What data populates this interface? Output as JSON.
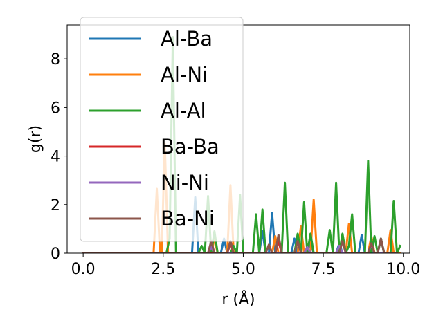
{
  "chart_data": {
    "type": "line",
    "xlabel": "r (Å)",
    "ylabel": "g(r)",
    "xlim": [
      -0.5,
      10.2
    ],
    "ylim": [
      0,
      9.4
    ],
    "xticks": [
      "0.0",
      "2.5",
      "5.0",
      "7.5",
      "10.0"
    ],
    "yticks": [
      "0",
      "2",
      "4",
      "6",
      "8"
    ],
    "grid": false,
    "legend_position": "top-left",
    "series": [
      {
        "name": "Al-Ba",
        "color": "#1f77b4",
        "points": [
          [
            0,
            0
          ],
          [
            3.4,
            0
          ],
          [
            3.5,
            2.3
          ],
          [
            3.6,
            0
          ],
          [
            4.3,
            0
          ],
          [
            4.4,
            0.6
          ],
          [
            4.5,
            0
          ],
          [
            5.5,
            0
          ],
          [
            5.6,
            0.9
          ],
          [
            5.7,
            0
          ],
          [
            5.8,
            0
          ],
          [
            5.9,
            1.65
          ],
          [
            6.0,
            0
          ],
          [
            6.5,
            0
          ],
          [
            6.6,
            0.6
          ],
          [
            6.7,
            0
          ],
          [
            7.0,
            0
          ],
          [
            7.1,
            0.5
          ],
          [
            7.2,
            0
          ],
          [
            7.9,
            0
          ],
          [
            8.0,
            0.4
          ],
          [
            8.1,
            0
          ],
          [
            8.6,
            0
          ],
          [
            8.7,
            0.75
          ],
          [
            8.8,
            0
          ],
          [
            9.2,
            0
          ],
          [
            9.3,
            0.6
          ],
          [
            9.4,
            0
          ],
          [
            9.8,
            0
          ]
        ]
      },
      {
        "name": "Al-Ni",
        "color": "#ff7f0e",
        "points": [
          [
            0,
            0
          ],
          [
            2.2,
            0
          ],
          [
            2.3,
            2.65
          ],
          [
            2.4,
            0
          ],
          [
            2.45,
            0
          ],
          [
            2.55,
            4.5
          ],
          [
            2.65,
            0
          ],
          [
            4.0,
            0
          ],
          [
            4.1,
            0.6
          ],
          [
            4.2,
            0
          ],
          [
            4.5,
            0
          ],
          [
            4.6,
            2.8
          ],
          [
            4.7,
            0
          ],
          [
            5.9,
            0
          ],
          [
            6.0,
            0.7
          ],
          [
            6.1,
            0
          ],
          [
            6.7,
            0
          ],
          [
            6.8,
            1.1
          ],
          [
            6.9,
            0
          ],
          [
            7.1,
            0
          ],
          [
            7.2,
            2.2
          ],
          [
            7.3,
            0
          ],
          [
            8.2,
            0
          ],
          [
            8.3,
            1.2
          ],
          [
            8.4,
            0
          ],
          [
            8.9,
            0
          ],
          [
            9.0,
            0.7
          ],
          [
            9.1,
            0
          ],
          [
            9.5,
            0
          ],
          [
            9.6,
            0.95
          ],
          [
            9.7,
            0
          ],
          [
            9.9,
            0
          ]
        ]
      },
      {
        "name": "Al-Al",
        "color": "#2ca02c",
        "points": [
          [
            0,
            0
          ],
          [
            2.6,
            0
          ],
          [
            2.7,
            0.6
          ],
          [
            2.8,
            8.9
          ],
          [
            2.9,
            0
          ],
          [
            3.6,
            0
          ],
          [
            3.7,
            0.3
          ],
          [
            3.8,
            0
          ],
          [
            3.9,
            2.35
          ],
          [
            4.0,
            0
          ],
          [
            4.1,
            0.9
          ],
          [
            4.2,
            0
          ],
          [
            4.6,
            0
          ],
          [
            4.7,
            0.3
          ],
          [
            4.8,
            0
          ],
          [
            4.9,
            2.4
          ],
          [
            5.0,
            0
          ],
          [
            5.3,
            0
          ],
          [
            5.4,
            1.6
          ],
          [
            5.5,
            0
          ],
          [
            5.6,
            1.8
          ],
          [
            5.7,
            0
          ],
          [
            6.0,
            0
          ],
          [
            6.1,
            0.7
          ],
          [
            6.2,
            0
          ],
          [
            6.3,
            2.9
          ],
          [
            6.4,
            0
          ],
          [
            6.6,
            0
          ],
          [
            6.7,
            0.8
          ],
          [
            6.8,
            0
          ],
          [
            6.9,
            2.1
          ],
          [
            7.0,
            0
          ],
          [
            7.1,
            0.8
          ],
          [
            7.2,
            0
          ],
          [
            7.6,
            0
          ],
          [
            7.7,
            0.95
          ],
          [
            7.8,
            0
          ],
          [
            7.9,
            2.9
          ],
          [
            8.0,
            0
          ],
          [
            8.1,
            0.8
          ],
          [
            8.2,
            0
          ],
          [
            8.3,
            0.3
          ],
          [
            8.4,
            1.6
          ],
          [
            8.5,
            0
          ],
          [
            8.8,
            0
          ],
          [
            8.9,
            3.8
          ],
          [
            9.0,
            0
          ],
          [
            9.1,
            0.7
          ],
          [
            9.2,
            0
          ],
          [
            9.3,
            0.6
          ],
          [
            9.4,
            0
          ],
          [
            9.6,
            0
          ],
          [
            9.7,
            2.15
          ],
          [
            9.8,
            0
          ],
          [
            9.9,
            0.3
          ]
        ]
      },
      {
        "name": "Ba-Ba",
        "color": "#d62728",
        "points": [
          [
            0,
            0
          ],
          [
            4.5,
            0
          ],
          [
            4.6,
            0.4
          ],
          [
            4.7,
            0
          ],
          [
            6.0,
            0
          ],
          [
            6.1,
            0.5
          ],
          [
            6.2,
            0
          ],
          [
            8.9,
            0
          ],
          [
            9.0,
            0.4
          ],
          [
            9.1,
            0
          ],
          [
            9.8,
            0
          ]
        ]
      },
      {
        "name": "Ni-Ni",
        "color": "#9467bd",
        "points": [
          [
            0,
            0
          ],
          [
            3.9,
            0
          ],
          [
            4.0,
            0.25
          ],
          [
            4.1,
            0
          ],
          [
            6.9,
            0
          ],
          [
            7.0,
            0.25
          ],
          [
            7.1,
            0
          ],
          [
            7.9,
            0
          ],
          [
            8.0,
            0.3
          ],
          [
            8.1,
            0
          ],
          [
            8.9,
            0
          ],
          [
            9.0,
            0.35
          ],
          [
            9.1,
            0
          ],
          [
            9.8,
            0
          ]
        ]
      },
      {
        "name": "Ba-Ni",
        "color": "#8c564b",
        "points": [
          [
            0,
            0
          ],
          [
            3.9,
            0
          ],
          [
            4.0,
            0.5
          ],
          [
            4.1,
            0
          ],
          [
            4.5,
            0
          ],
          [
            4.6,
            0.5
          ],
          [
            4.7,
            0
          ],
          [
            5.7,
            0
          ],
          [
            5.8,
            0.35
          ],
          [
            5.9,
            0
          ],
          [
            6.0,
            0
          ],
          [
            6.1,
            0.75
          ],
          [
            6.2,
            0
          ],
          [
            6.6,
            0
          ],
          [
            6.7,
            0.5
          ],
          [
            6.8,
            0
          ],
          [
            8.0,
            0
          ],
          [
            8.1,
            0.5
          ],
          [
            8.2,
            0
          ],
          [
            8.9,
            0
          ],
          [
            9.0,
            0.4
          ],
          [
            9.1,
            0
          ],
          [
            9.2,
            0
          ],
          [
            9.3,
            0.6
          ],
          [
            9.4,
            0
          ],
          [
            9.8,
            0
          ]
        ]
      }
    ]
  }
}
